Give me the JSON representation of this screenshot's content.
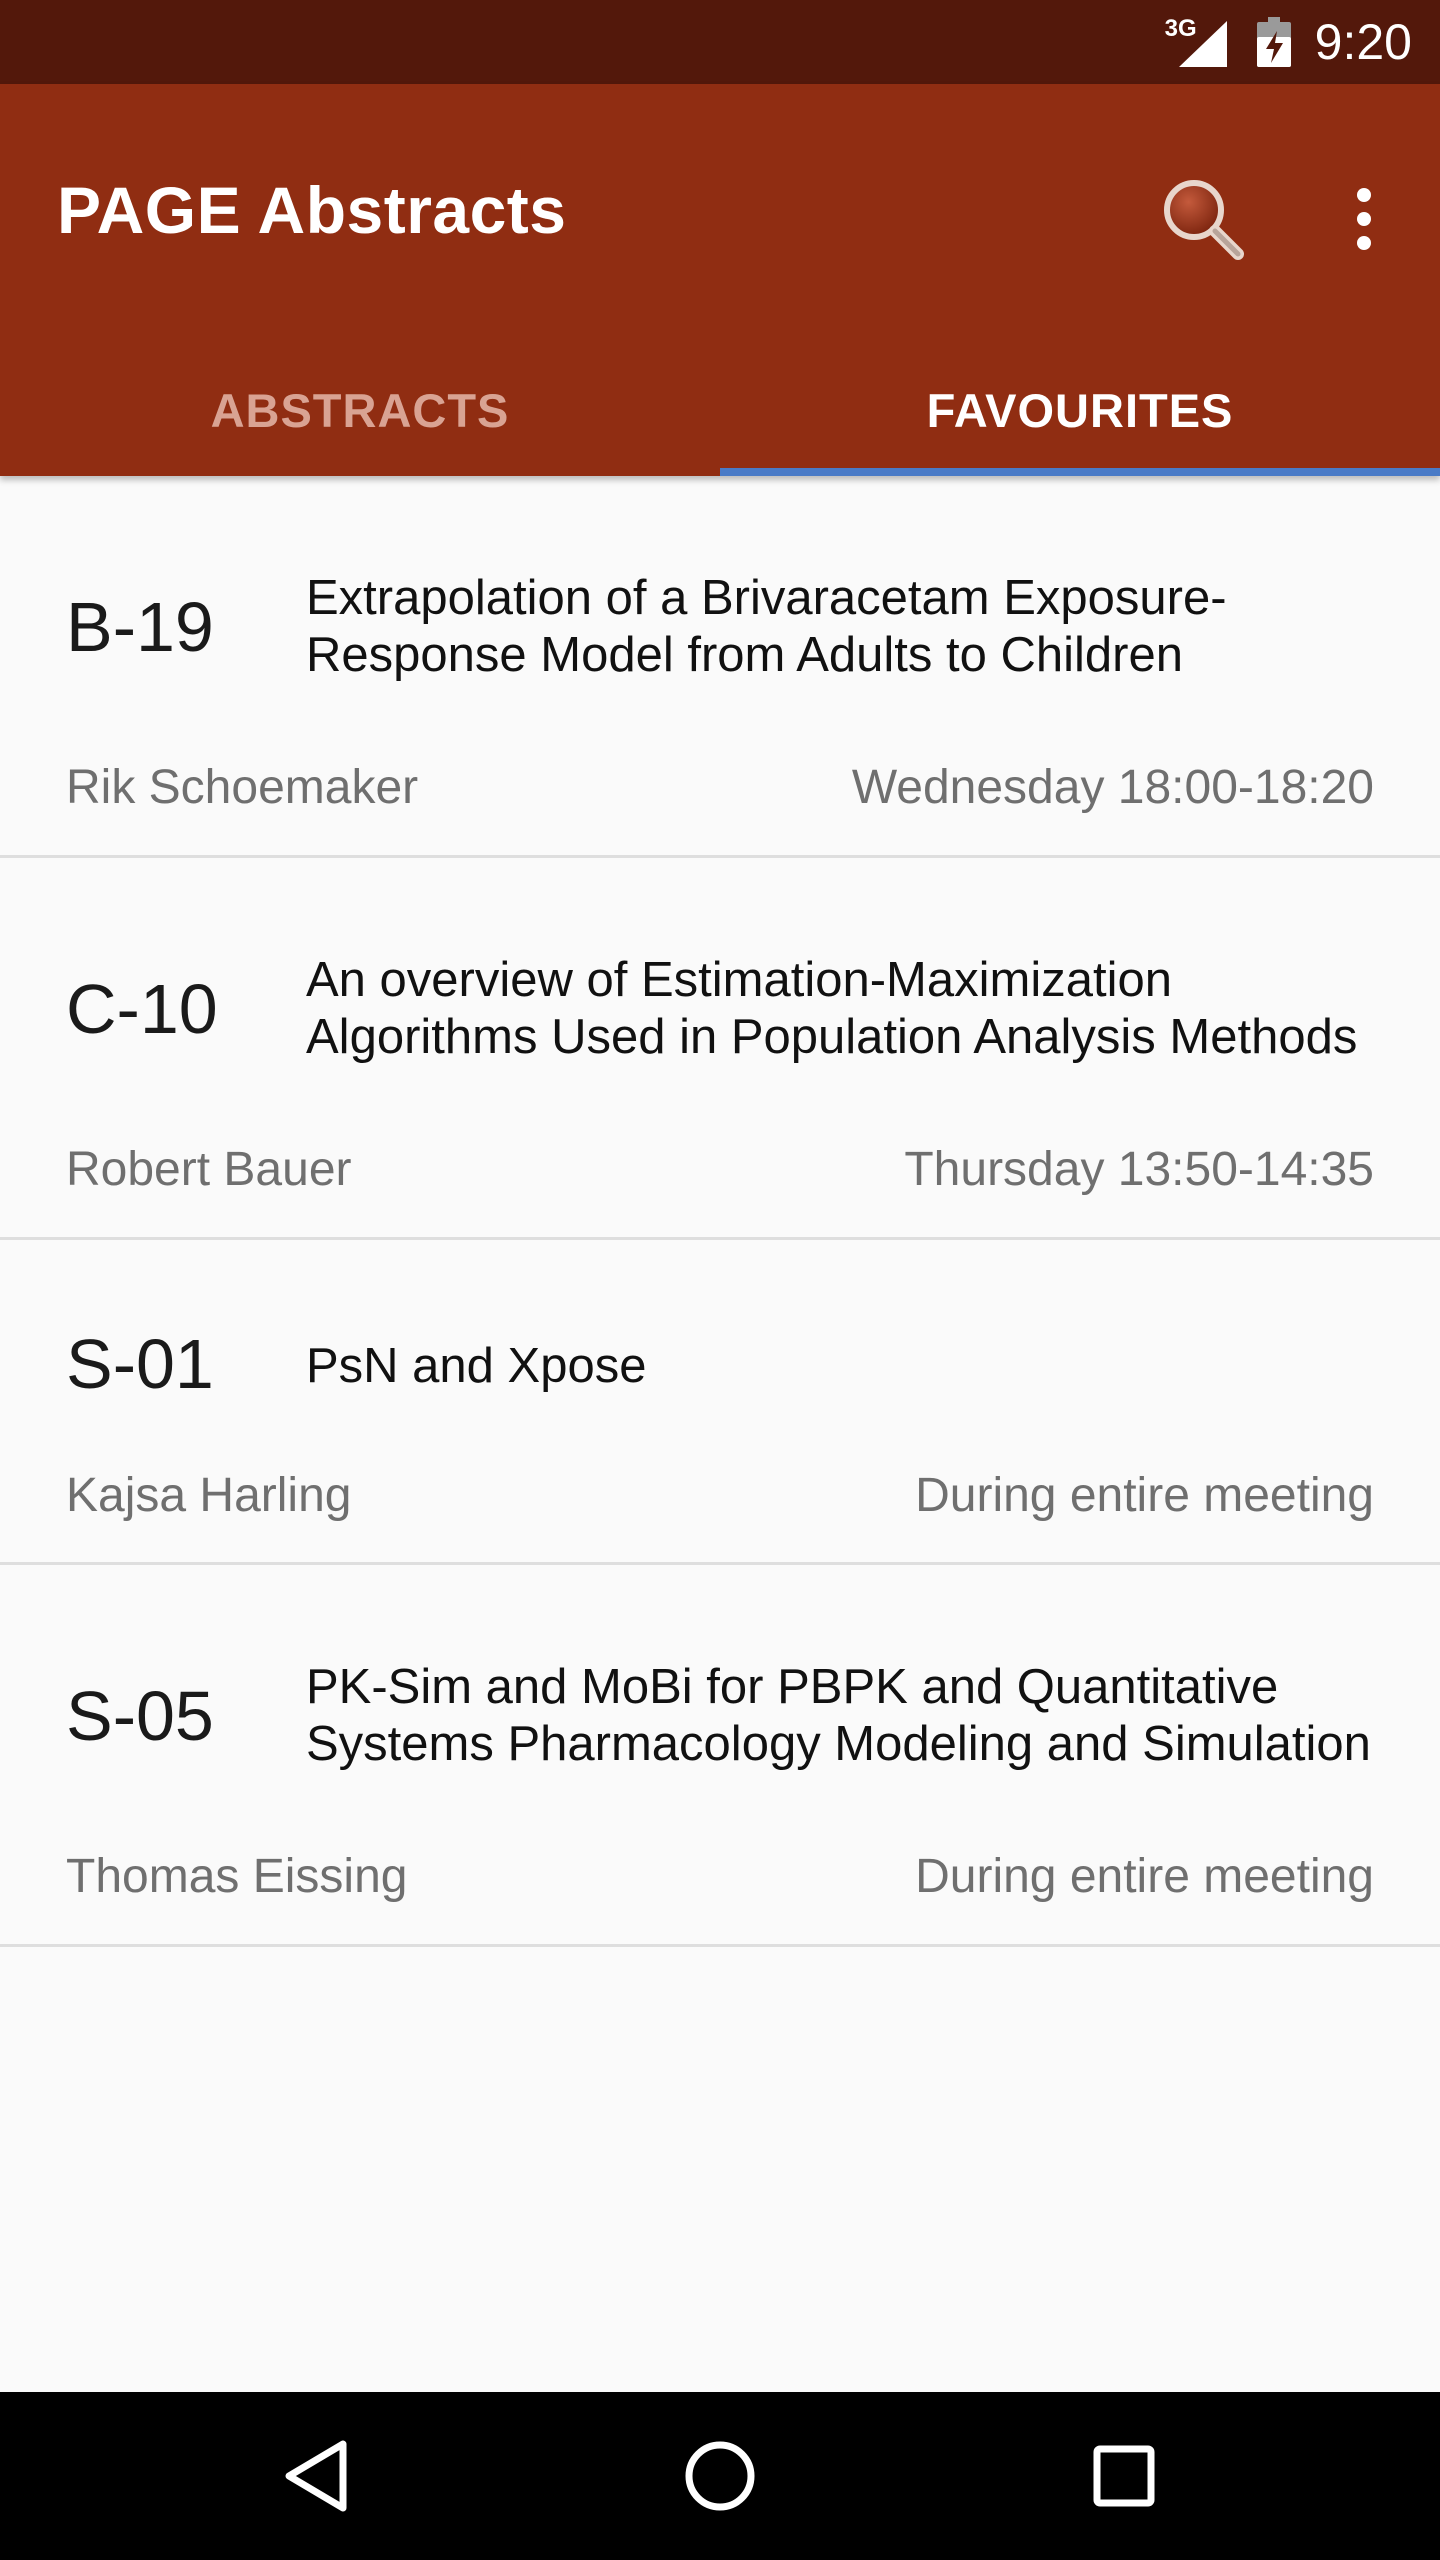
{
  "status_bar": {
    "network": "3G",
    "time": "9:20",
    "icons": [
      "signal-icon",
      "battery-icon"
    ]
  },
  "app_bar": {
    "title": "PAGE Abstracts",
    "actions": [
      "search-icon",
      "more-vert-icon"
    ],
    "tabs": [
      {
        "label": "ABSTRACTS",
        "selected": false
      },
      {
        "label": "FAVOURITES",
        "selected": true
      }
    ],
    "colors": {
      "app_bar": "#902d12",
      "status_bar": "#53180b",
      "indicator": "#4a7bc7"
    }
  },
  "favourites": [
    {
      "code": "B-19",
      "title_lines": [
        "Extrapolation of a Brivaracetam Exposure-",
        "Response Model from Adults to Children"
      ],
      "author": "Rik Schoemaker",
      "time": "Wednesday 18:00-18:20"
    },
    {
      "code": "C-10",
      "title_lines": [
        "An overview of Estimation-Maximization",
        "Algorithms Used in Population Analysis Methods"
      ],
      "author": "Robert Bauer",
      "time": "Thursday 13:50-14:35"
    },
    {
      "code": "S-01",
      "title_lines": [
        "PsN and Xpose"
      ],
      "author": "Kajsa Harling",
      "time": "During entire meeting"
    },
    {
      "code": "S-05",
      "title_lines": [
        "PK-Sim and MoBi for PBPK and Quantitative",
        "Systems Pharmacology Modeling and Simulation"
      ],
      "author": "Thomas Eissing",
      "time": "During entire meeting"
    }
  ],
  "nav_bar": {
    "buttons": [
      "back-icon",
      "home-icon",
      "recents-icon"
    ]
  }
}
